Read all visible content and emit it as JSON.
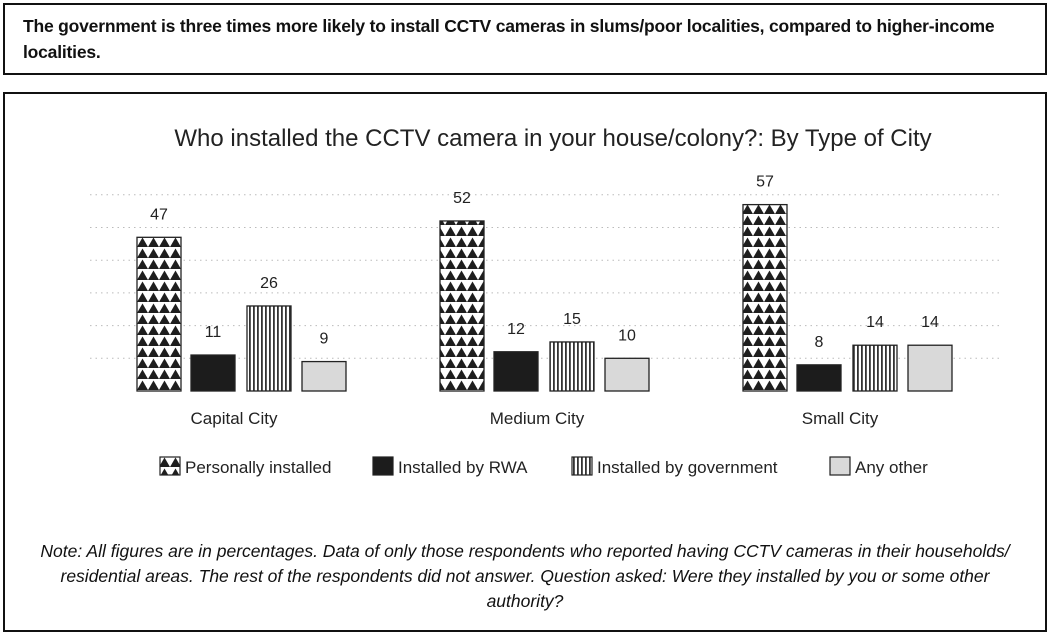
{
  "headline": "The government is three times more likely to install CCTV cameras in slums/poor localities, compared to higher-income localities.",
  "note": "Note: All figures are in percentages. Data of only those respondents who reported having CCTV cameras in their households/ residential areas. The rest of the respondents did not answer.  Question asked: Were they installed by you or some other authority?",
  "colors": {
    "rwa": "#1c1c1c",
    "other": "#d9d9d9",
    "stroke": "#222222",
    "grid": "#bbbbbb"
  },
  "chart_data": {
    "type": "bar",
    "title": "Who installed the CCTV camera in your house/colony?: By Type of City",
    "xlabel": "",
    "ylabel": "",
    "ylim": [
      0,
      60
    ],
    "grid": true,
    "legend_placement": "bottom",
    "categories": [
      "Capital City",
      "Medium City",
      "Small City"
    ],
    "series": [
      {
        "name": "Personally installed",
        "pattern": "triangles-icon",
        "values": [
          47,
          52,
          57
        ]
      },
      {
        "name": "Installed by RWA",
        "pattern": "solid-dark",
        "values": [
          11,
          12,
          8
        ]
      },
      {
        "name": "Installed by government",
        "pattern": "vertical-stripes-icon",
        "values": [
          26,
          15,
          14
        ]
      },
      {
        "name": "Any other",
        "pattern": "solid-light",
        "values": [
          9,
          10,
          14
        ]
      }
    ]
  }
}
